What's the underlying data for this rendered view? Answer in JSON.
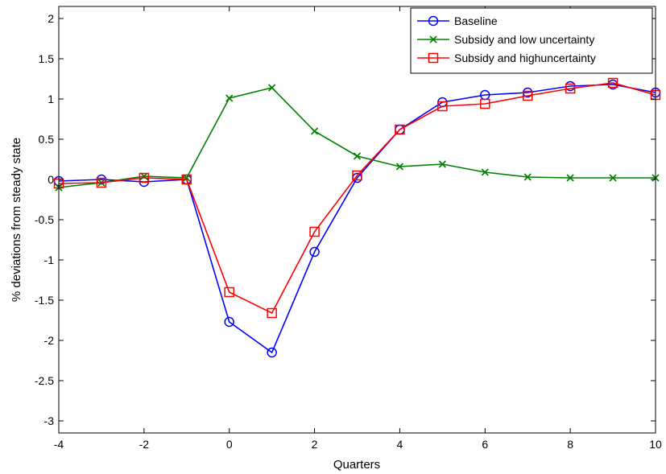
{
  "chart_data": {
    "type": "line",
    "xlabel": "Quarters",
    "ylabel": "% deviations from steady state",
    "xlim": [
      -4,
      10
    ],
    "ylim": [
      -3.15,
      2.15
    ],
    "xticks": [
      -4,
      -2,
      0,
      2,
      4,
      6,
      8,
      10
    ],
    "yticks": [
      -3,
      -2.5,
      -2,
      -1.5,
      -1,
      -0.5,
      0,
      0.5,
      1,
      1.5,
      2
    ],
    "xtick_labels": [
      "-4",
      "-2",
      "0",
      "2",
      "4",
      "6",
      "8",
      "10"
    ],
    "ytick_labels": [
      "-3",
      "-2.5",
      "-2",
      "-1.5",
      "-1",
      "-0.5",
      "0",
      "0.5",
      "1",
      "1.5",
      "2"
    ],
    "grid": false,
    "legend_position": "top-right",
    "x": [
      -4,
      -3,
      -2,
      -1,
      0,
      1,
      2,
      3,
      4,
      5,
      6,
      7,
      8,
      9,
      10
    ],
    "series": [
      {
        "name": "Baseline",
        "color": "#0000ff",
        "marker": "circle",
        "values": [
          -0.02,
          0.0,
          -0.03,
          0.0,
          -1.77,
          -2.15,
          -0.9,
          0.02,
          0.62,
          0.96,
          1.05,
          1.08,
          1.16,
          1.18,
          1.08
        ]
      },
      {
        "name": "Subsidy and low uncertainty",
        "color": "#008000",
        "marker": "x",
        "values": [
          -0.1,
          -0.04,
          0.04,
          0.02,
          1.01,
          1.14,
          0.6,
          0.29,
          0.16,
          0.19,
          0.09,
          0.03,
          0.02,
          0.02,
          0.02
        ]
      },
      {
        "name": "Subsidy and highuncertainty",
        "color": "#ff0000",
        "marker": "square",
        "values": [
          -0.05,
          -0.04,
          0.02,
          0.0,
          -1.4,
          -1.66,
          -0.65,
          0.05,
          0.62,
          0.91,
          0.94,
          1.04,
          1.13,
          1.2,
          1.05
        ]
      }
    ]
  }
}
